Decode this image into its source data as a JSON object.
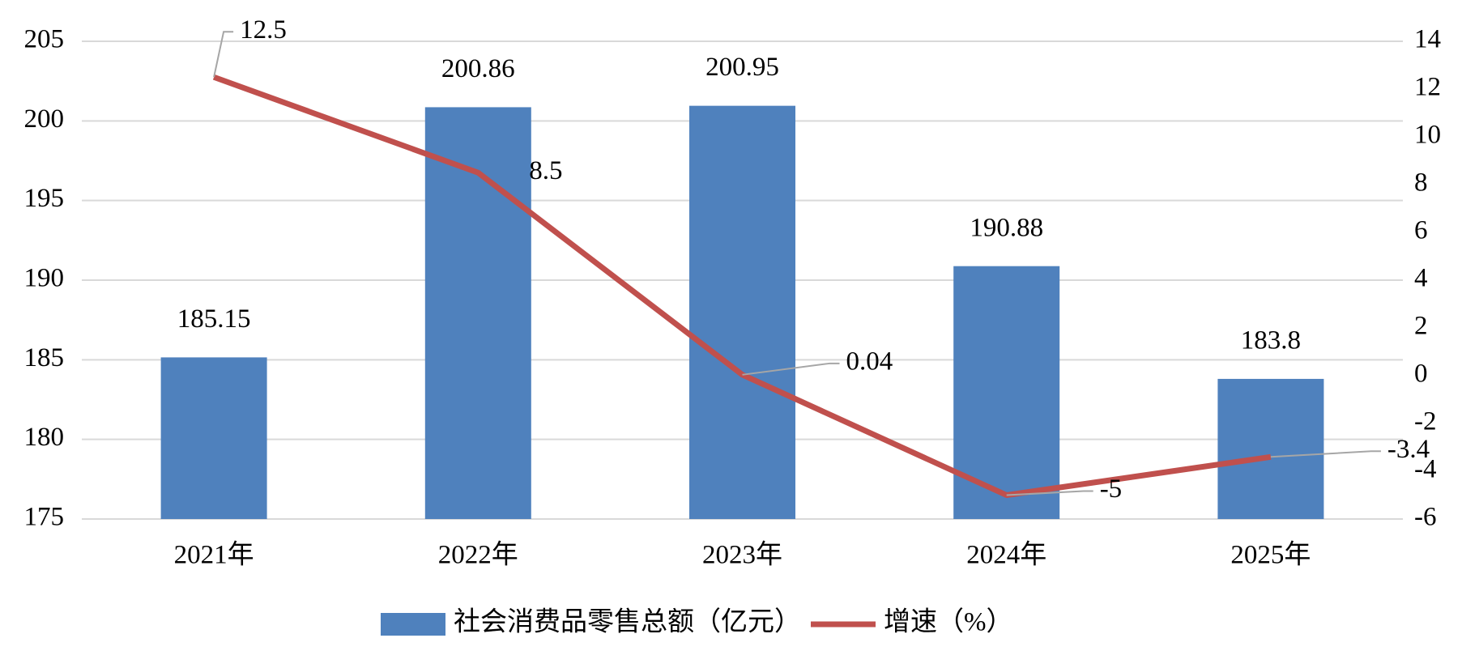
{
  "chart_data": {
    "type": "bar_line",
    "categories": [
      "2021年",
      "2022年",
      "2023年",
      "2024年",
      "2025年"
    ],
    "series": [
      {
        "name": "社会消费品零售总额（亿元）",
        "type": "bar",
        "color": "#4f81bd",
        "values": [
          185.15,
          200.86,
          200.95,
          190.88,
          183.8
        ]
      },
      {
        "name": "增速（%）",
        "type": "line",
        "axis": "y2",
        "color": "#c0504d",
        "values": [
          12.5,
          8.5,
          0.04,
          -5,
          -3.4
        ]
      }
    ],
    "ylim": [
      175,
      205
    ],
    "yticks": [
      175,
      180,
      185,
      190,
      195,
      200,
      205
    ],
    "y2lim": [
      -6,
      14
    ],
    "y2ticks": [
      -6,
      -4,
      -2,
      0,
      2,
      4,
      6,
      8,
      10,
      12,
      14
    ],
    "grid": true,
    "legend": "bottom"
  }
}
